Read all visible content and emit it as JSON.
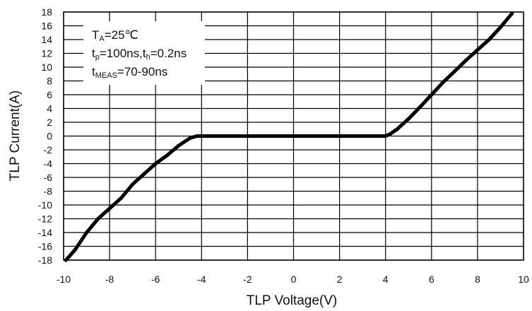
{
  "chart_data": {
    "type": "line",
    "xlabel": "TLP Voltage(V)",
    "ylabel": "TLP  Current(A)",
    "xlim": [
      -10,
      10
    ],
    "ylim": [
      -18,
      18
    ],
    "x_ticks": [
      "-10",
      "-8",
      "-6",
      "-4",
      "-2",
      "0",
      "2",
      "4",
      "6",
      "8",
      "10"
    ],
    "y_ticks": [
      "18",
      "16",
      "14",
      "12",
      "10",
      "8",
      "6",
      "4",
      "2",
      "0",
      "-2",
      "-4",
      "-6",
      "-8",
      "-10",
      "-12",
      "-14",
      "-16",
      "-18"
    ],
    "grid": true,
    "annotations": [
      {
        "main": "T",
        "sub": "A",
        "rest": "=25℃"
      },
      {
        "main": "t",
        "sub": "p",
        "rest": "=100ns,t",
        "sub2": "h",
        "rest2": "=0.2ns"
      },
      {
        "main": "t",
        "sub": "MEAS",
        "rest": "=70-90ns"
      }
    ],
    "series": [
      {
        "color": "#000000",
        "x": [
          -9.9,
          -9.5,
          -9.0,
          -8.5,
          -8.0,
          -7.5,
          -7.0,
          -6.5,
          -6.0,
          -5.5,
          -5.0,
          -4.5,
          -4.2,
          -4.0,
          -2.0,
          0.0,
          2.0,
          3.8,
          4.0,
          4.2,
          4.5,
          5.0,
          5.5,
          6.0,
          6.5,
          7.0,
          7.5,
          8.0,
          8.5,
          9.0,
          9.3,
          9.5
        ],
        "y": [
          -18.0,
          -16.5,
          -14.0,
          -12.0,
          -10.5,
          -9.0,
          -7.0,
          -5.5,
          -4.0,
          -2.8,
          -1.4,
          -0.3,
          0.0,
          0.0,
          0.0,
          0.0,
          0.0,
          0.0,
          0.0,
          0.3,
          1.0,
          2.5,
          4.2,
          6.0,
          7.8,
          9.4,
          11.0,
          12.5,
          14.0,
          15.8,
          17.0,
          17.8
        ]
      }
    ]
  }
}
